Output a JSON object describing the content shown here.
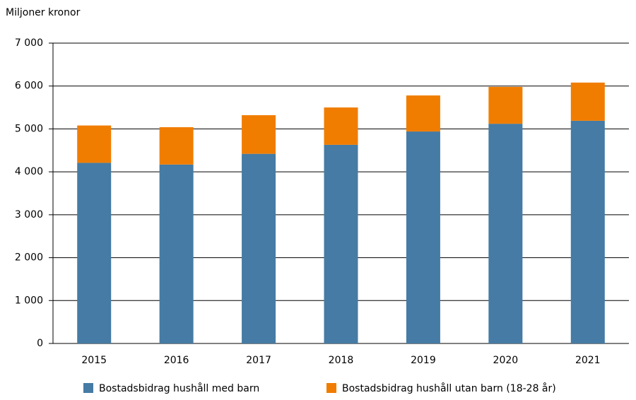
{
  "chart_data": {
    "type": "stacked_bar",
    "y_axis_label": "Miljoner kronor",
    "categories": [
      "2015",
      "2016",
      "2017",
      "2018",
      "2019",
      "2020",
      "2021"
    ],
    "series": [
      {
        "name": "Bostadsbidrag hushåll med barn",
        "color": "#457ba4",
        "values": [
          4210,
          4170,
          4420,
          4630,
          4940,
          5120,
          5190
        ]
      },
      {
        "name": "Bostadsbidrag hushåll utan barn (18-28 år)",
        "color": "#f07d00",
        "values": [
          870,
          870,
          900,
          870,
          840,
          860,
          890
        ]
      }
    ],
    "ylim": [
      0,
      7000
    ],
    "yticks": [
      0,
      {
        "value": 1000,
        "label": "1 000"
      },
      {
        "value": 2000,
        "label": "2 000"
      },
      {
        "value": 3000,
        "label": "3 000"
      },
      {
        "value": 4000,
        "label": "4 000"
      },
      {
        "value": 5000,
        "label": "5 000"
      },
      {
        "value": 6000,
        "label": "6 000"
      },
      {
        "value": 7000,
        "label": "7 000"
      }
    ],
    "grid": true
  }
}
